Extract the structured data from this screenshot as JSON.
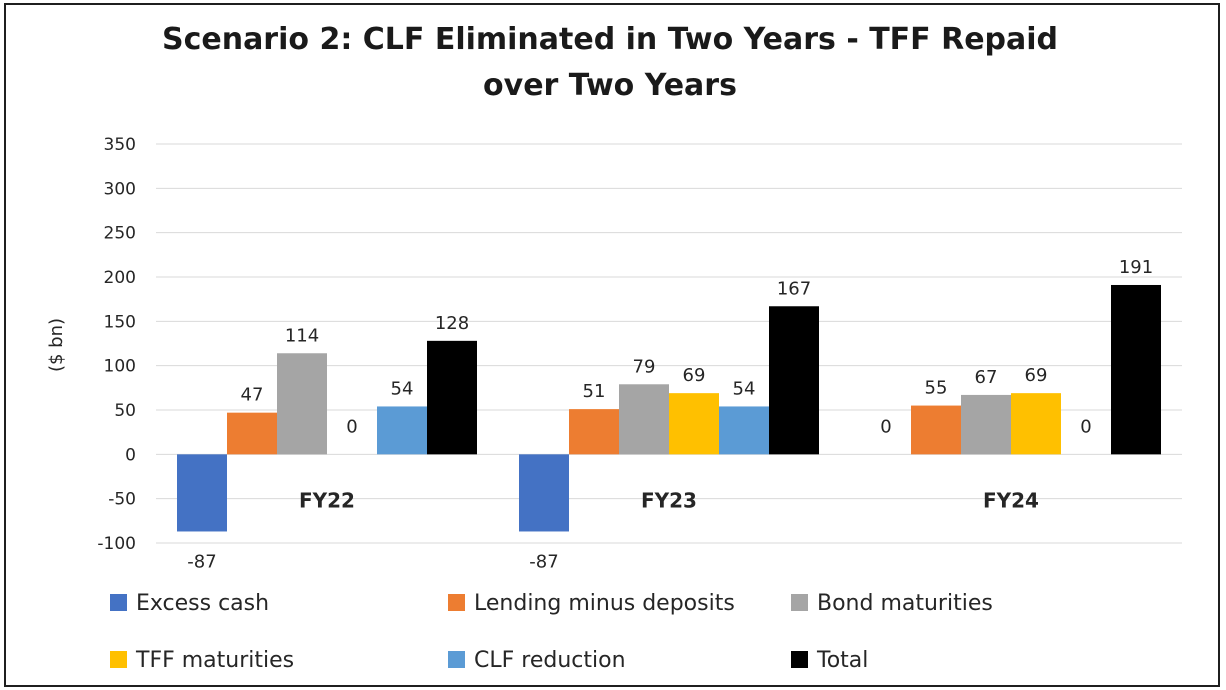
{
  "chart_data": {
    "type": "bar",
    "title_lines": [
      "Scenario 2: CLF Eliminated in Two Years - TFF Repaid",
      "over Two Years"
    ],
    "xlabel": "",
    "ylabel": "($ bn)",
    "ylim": [
      -100,
      350
    ],
    "yticks": [
      350,
      300,
      250,
      200,
      150,
      100,
      50,
      0,
      -50,
      -100
    ],
    "grid": true,
    "legend_position": "bottom",
    "categories": [
      "FY22",
      "FY23",
      "FY24"
    ],
    "series": [
      {
        "name": "Excess cash",
        "color": "#4472c4",
        "values": [
          -87,
          -87,
          0
        ]
      },
      {
        "name": "Lending minus deposits",
        "color": "#ed7d31",
        "values": [
          47,
          51,
          55
        ]
      },
      {
        "name": "Bond maturities",
        "color": "#a5a5a5",
        "values": [
          114,
          79,
          67
        ]
      },
      {
        "name": "TFF maturities",
        "color": "#ffc000",
        "values": [
          0,
          69,
          69
        ]
      },
      {
        "name": "CLF reduction",
        "color": "#5b9bd5",
        "values": [
          54,
          54,
          0
        ]
      },
      {
        "name": "Total",
        "color": "#000000",
        "values": [
          128,
          167,
          191
        ]
      }
    ],
    "data_labels": [
      [
        "-87",
        "47",
        "114",
        "0",
        "54",
        "128"
      ],
      [
        "-87",
        "51",
        "79",
        "69",
        "54",
        "167"
      ],
      [
        "0",
        "55",
        "67",
        "69",
        "0",
        "191"
      ]
    ]
  }
}
